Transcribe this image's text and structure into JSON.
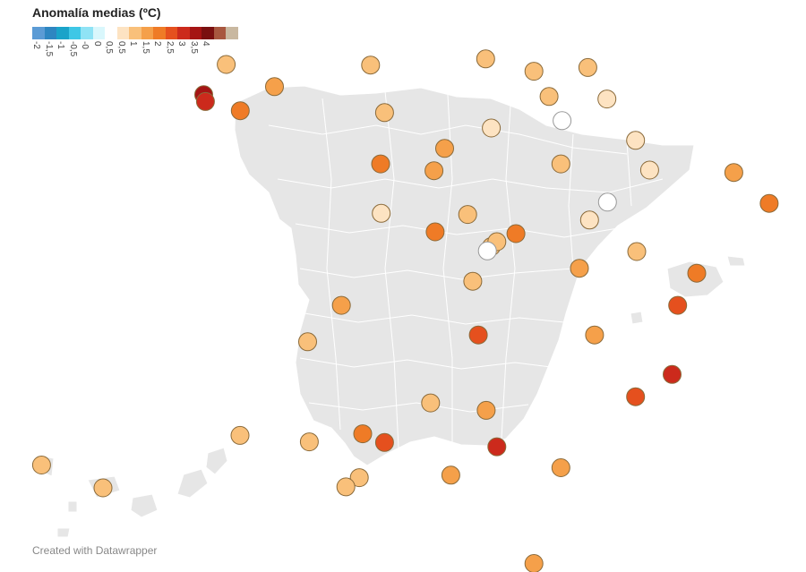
{
  "legend": {
    "title": "Anomalía medias (ºC)",
    "items": [
      {
        "label": "-2",
        "color": "#5b9bd5"
      },
      {
        "label": "-1,5",
        "color": "#2e86c1"
      },
      {
        "label": "-1",
        "color": "#1aa3c9"
      },
      {
        "label": "-0,5",
        "color": "#3ec7e6"
      },
      {
        "label": "-0",
        "color": "#8fe3f5"
      },
      {
        "label": "0",
        "color": "#d9f7fc"
      },
      {
        "label": "0,5",
        "color": "#ffffff"
      },
      {
        "label": "0,5",
        "color": "#fde3c2"
      },
      {
        "label": "1",
        "color": "#f9c07a"
      },
      {
        "label": "1,5",
        "color": "#f5a04a"
      },
      {
        "label": "2",
        "color": "#ef7b26"
      },
      {
        "label": "2,5",
        "color": "#e5501e"
      },
      {
        "label": "3",
        "color": "#cc2a1c"
      },
      {
        "label": "3,5",
        "color": "#a51414"
      },
      {
        "label": "4",
        "color": "#7a1010"
      },
      {
        "label": "",
        "color": "#a8573f"
      },
      {
        "label": "",
        "color": "#c9b8a0"
      }
    ]
  },
  "stations": [
    {
      "lon": -8.42,
      "lat": 43.37,
      "anomaly": 1.0
    },
    {
      "lon": -7.56,
      "lat": 43.01,
      "anomaly": 1.5
    },
    {
      "lon": -8.82,
      "lat": 42.88,
      "anomaly": 3.5
    },
    {
      "lon": -8.79,
      "lat": 42.77,
      "anomaly": 3.0
    },
    {
      "lon": -8.17,
      "lat": 42.62,
      "anomaly": 2.0
    },
    {
      "lon": -5.85,
      "lat": 43.36,
      "anomaly": 1.0
    },
    {
      "lon": -5.6,
      "lat": 42.59,
      "anomaly": 1.0
    },
    {
      "lon": -3.8,
      "lat": 43.46,
      "anomaly": 1.0
    },
    {
      "lon": -2.94,
      "lat": 43.26,
      "anomaly": 1.0
    },
    {
      "lon": -1.98,
      "lat": 43.32,
      "anomaly": 1.0
    },
    {
      "lon": -2.67,
      "lat": 42.85,
      "anomaly": 1.0
    },
    {
      "lon": -1.64,
      "lat": 42.81,
      "anomaly": 0.5
    },
    {
      "lon": -3.7,
      "lat": 42.34,
      "anomaly": 0.5
    },
    {
      "lon": -2.44,
      "lat": 42.46,
      "anomaly": 0.0
    },
    {
      "lon": -4.53,
      "lat": 42.01,
      "anomaly": 1.5
    },
    {
      "lon": -5.67,
      "lat": 41.76,
      "anomaly": 2.0
    },
    {
      "lon": -4.72,
      "lat": 41.65,
      "anomaly": 1.5
    },
    {
      "lon": -2.46,
      "lat": 41.76,
      "anomaly": 1.0
    },
    {
      "lon": -1.13,
      "lat": 42.14,
      "anomaly": 0.5
    },
    {
      "lon": -0.88,
      "lat": 41.66,
      "anomaly": 0.5
    },
    {
      "lon": 0.62,
      "lat": 41.62,
      "anomaly": 1.5
    },
    {
      "lon": 2.82,
      "lat": 41.98,
      "anomaly": 2.0
    },
    {
      "lon": 2.17,
      "lat": 41.39,
      "anomaly": 2.0
    },
    {
      "lon": 1.25,
      "lat": 41.12,
      "anomaly": 2.0
    },
    {
      "lon": -5.66,
      "lat": 40.96,
      "anomaly": 0.5
    },
    {
      "lon": -4.12,
      "lat": 40.94,
      "anomaly": 1.0
    },
    {
      "lon": -3.7,
      "lat": 40.42,
      "anomaly": 1.0
    },
    {
      "lon": -4.7,
      "lat": 40.66,
      "anomaly": 2.0
    },
    {
      "lon": -3.6,
      "lat": 40.5,
      "anomaly": 1.0
    },
    {
      "lon": -3.77,
      "lat": 40.35,
      "anomaly": 0.0
    },
    {
      "lon": -3.26,
      "lat": 40.63,
      "anomaly": 2.0
    },
    {
      "lon": -1.63,
      "lat": 41.14,
      "anomaly": 0.0
    },
    {
      "lon": -1.95,
      "lat": 40.85,
      "anomaly": 0.5
    },
    {
      "lon": -1.11,
      "lat": 40.34,
      "anomaly": 1.0
    },
    {
      "lon": -0.04,
      "lat": 39.99,
      "anomaly": 2.0
    },
    {
      "lon": -4.03,
      "lat": 39.86,
      "anomaly": 1.0
    },
    {
      "lon": -2.13,
      "lat": 40.07,
      "anomaly": 1.5
    },
    {
      "lon": -0.38,
      "lat": 39.47,
      "anomaly": 2.5
    },
    {
      "lon": -6.37,
      "lat": 39.47,
      "anomaly": 1.5
    },
    {
      "lon": -3.93,
      "lat": 38.99,
      "anomaly": 2.5
    },
    {
      "lon": -1.86,
      "lat": 38.99,
      "anomaly": 1.5
    },
    {
      "lon": 2.65,
      "lat": 39.57,
      "anomaly": 3.5
    },
    {
      "lon": -6.97,
      "lat": 38.88,
      "anomaly": 1.0
    },
    {
      "lon": -0.48,
      "lat": 38.35,
      "anomaly": 3.0
    },
    {
      "lon": -1.13,
      "lat": 37.99,
      "anomaly": 2.5
    },
    {
      "lon": -4.78,
      "lat": 37.89,
      "anomaly": 1.0
    },
    {
      "lon": -3.79,
      "lat": 37.77,
      "anomaly": 1.5
    },
    {
      "lon": -6.94,
      "lat": 37.26,
      "anomaly": 1.0
    },
    {
      "lon": -5.99,
      "lat": 37.39,
      "anomaly": 2.0
    },
    {
      "lon": -5.6,
      "lat": 37.25,
      "anomaly": 2.5
    },
    {
      "lon": -3.6,
      "lat": 37.18,
      "anomaly": 3.0
    },
    {
      "lon": -2.46,
      "lat": 36.84,
      "anomaly": 1.5
    },
    {
      "lon": -4.42,
      "lat": 36.72,
      "anomaly": 1.5
    },
    {
      "lon": -6.05,
      "lat": 36.68,
      "anomaly": 1.0
    },
    {
      "lon": -6.29,
      "lat": 36.53,
      "anomaly": 1.0
    },
    {
      "lon": -2.94,
      "lat": 35.29,
      "anomaly": 1.5
    },
    {
      "lon": -13.6,
      "lat": 28.95,
      "anomaly": 1.0
    },
    {
      "lon": -15.43,
      "lat": 28.1,
      "anomaly": 1.0
    },
    {
      "lon": -16.25,
      "lat": 28.47,
      "anomaly": 1.0
    }
  ],
  "credit": "Created with Datawrapper"
}
